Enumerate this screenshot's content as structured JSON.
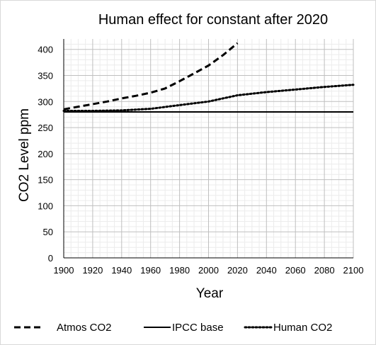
{
  "chart_data": {
    "type": "line",
    "title": "Human effect for constant after 2020",
    "xlabel": "Year",
    "ylabel": "CO2 Level ppm",
    "xlim": [
      1900,
      2100
    ],
    "ylim": [
      0,
      420
    ],
    "x_ticks": [
      1900,
      1920,
      1940,
      1960,
      1980,
      2000,
      2020,
      2040,
      2060,
      2080,
      2100
    ],
    "y_ticks": [
      0,
      50,
      100,
      150,
      200,
      250,
      300,
      350,
      400
    ],
    "grid": true,
    "legend_position": "bottom",
    "series": [
      {
        "name": "Atmos CO2",
        "style": "dashed",
        "color": "#000000",
        "x": [
          1900,
          1910,
          1920,
          1930,
          1940,
          1950,
          1960,
          1970,
          1980,
          1990,
          2000,
          2010,
          2020
        ],
        "y": [
          285,
          290,
          295,
          300,
          306,
          311,
          317,
          325,
          339,
          354,
          369,
          389,
          412
        ]
      },
      {
        "name": "IPCC base",
        "style": "solid",
        "color": "#000000",
        "x": [
          1900,
          2100
        ],
        "y": [
          280,
          280
        ]
      },
      {
        "name": "Human CO2",
        "style": "dotted",
        "color": "#000000",
        "x": [
          1900,
          1920,
          1940,
          1960,
          1980,
          2000,
          2020,
          2040,
          2060,
          2080,
          2100
        ],
        "y": [
          282,
          282,
          283,
          286,
          293,
          300,
          312,
          318,
          323,
          328,
          332
        ]
      }
    ]
  }
}
